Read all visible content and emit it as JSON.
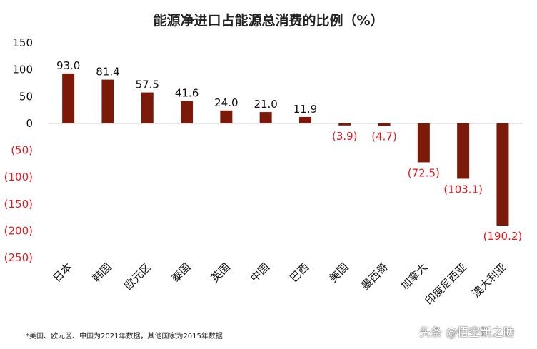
{
  "chart_data": {
    "type": "bar",
    "title": "能源净进口占能源总消费的比例（%）",
    "categories": [
      "日本",
      "韩国",
      "欧元区",
      "泰国",
      "英国",
      "中国",
      "巴西",
      "美国",
      "墨西哥",
      "加拿大",
      "印度尼西亚",
      "澳大利亚"
    ],
    "series": [
      {
        "values": [
          93.0,
          81.4,
          57.5,
          41.6,
          24.0,
          21.0,
          11.9,
          -3.9,
          -4.7,
          -72.5,
          -103.1,
          -190.2
        ],
        "labels": [
          "93.0",
          "81.4",
          "57.5",
          "41.6",
          "24.0",
          "21.0",
          "11.9",
          "(3.9)",
          "(4.7)",
          "(72.5)",
          "(103.1)",
          "(190.2)"
        ]
      }
    ],
    "ylim": [
      -250,
      150
    ],
    "yticks": [
      150,
      100,
      50,
      0,
      -50,
      -100,
      -150,
      -200,
      -250
    ],
    "ytick_labels": [
      "150",
      "100",
      "50",
      "0",
      "(50)",
      "(100)",
      "(150)",
      "(200)",
      "(250)"
    ],
    "xlabel": "",
    "ylabel": "",
    "grid": false,
    "colors": {
      "bar": "#7b1a08",
      "positive_text": "#111111",
      "negative_text": "#e8181c"
    }
  },
  "footnote": "*美国、欧元区、中国为2021年数据，其他国家为2015年数据",
  "watermark": "头条 @悟空新之助"
}
